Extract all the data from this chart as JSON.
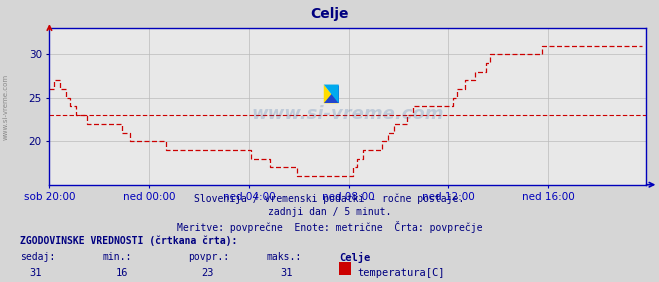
{
  "title": "Celje",
  "title_color": "#000080",
  "bg_color": "#d6d6d6",
  "plot_bg_color": "#e8e8e8",
  "line_color": "#cc0000",
  "avg_line_color": "#cc0000",
  "axis_color": "#0000bb",
  "grid_color": "#bbbbbb",
  "text_color": "#000080",
  "watermark": "www.si-vreme.com",
  "footer_line1": "Slovenija / vremenski podatki - ročne postaje.",
  "footer_line2": "zadnji dan / 5 minut.",
  "footer_line3": "Meritve: povprečne  Enote: metrične  Črta: povprečje",
  "hist_label": "ZGODOVINSKE VREDNOSTI (črtkana črta):",
  "col_sedaj": "sedaj:",
  "col_min": "min.:",
  "col_povpr": "povpr.:",
  "col_maks": "maks.:",
  "val_sedaj": 31,
  "val_min": 16,
  "val_povpr": 23,
  "val_maks": 31,
  "legend_station": "Celje",
  "legend_var": "temperatura[C]",
  "ylim": [
    15,
    33
  ],
  "yticks": [
    20,
    25,
    30
  ],
  "xlim": [
    0,
    287
  ],
  "xtick_positions": [
    0,
    48,
    96,
    144,
    192,
    240
  ],
  "xtick_labels": [
    "sob 20:00",
    "ned 00:00",
    "ned 04:00",
    "ned 08:00",
    "ned 12:00",
    "ned 16:00"
  ],
  "avg_value": 23,
  "temperature_data": [
    26,
    26,
    27,
    27,
    27,
    26,
    26,
    26,
    25,
    25,
    24,
    24,
    24,
    23,
    23,
    23,
    23,
    23,
    22,
    22,
    22,
    22,
    22,
    22,
    22,
    22,
    22,
    22,
    22,
    22,
    22,
    22,
    22,
    22,
    22,
    21,
    21,
    21,
    21,
    20,
    20,
    20,
    20,
    20,
    20,
    20,
    20,
    20,
    20,
    20,
    20,
    20,
    20,
    20,
    20,
    20,
    19,
    19,
    19,
    19,
    19,
    19,
    19,
    19,
    19,
    19,
    19,
    19,
    19,
    19,
    19,
    19,
    19,
    19,
    19,
    19,
    19,
    19,
    19,
    19,
    19,
    19,
    19,
    19,
    19,
    19,
    19,
    19,
    19,
    19,
    19,
    19,
    19,
    19,
    19,
    19,
    19,
    18,
    18,
    18,
    18,
    18,
    18,
    18,
    18,
    18,
    17,
    17,
    17,
    17,
    17,
    17,
    17,
    17,
    17,
    17,
    17,
    17,
    17,
    16,
    16,
    16,
    16,
    16,
    16,
    16,
    16,
    16,
    16,
    16,
    16,
    16,
    16,
    16,
    16,
    16,
    16,
    16,
    16,
    16,
    16,
    16,
    16,
    16,
    16,
    16,
    17,
    17,
    18,
    18,
    18,
    19,
    19,
    19,
    19,
    19,
    19,
    19,
    19,
    19,
    20,
    20,
    20,
    21,
    21,
    21,
    22,
    22,
    22,
    22,
    22,
    22,
    23,
    23,
    23,
    24,
    24,
    24,
    24,
    24,
    24,
    24,
    24,
    24,
    24,
    24,
    24,
    24,
    24,
    24,
    24,
    24,
    24,
    24,
    25,
    25,
    26,
    26,
    26,
    26,
    27,
    27,
    27,
    27,
    27,
    28,
    28,
    28,
    28,
    28,
    29,
    29,
    30,
    30,
    30,
    30,
    30,
    30,
    30,
    30,
    30,
    30,
    30,
    30,
    30,
    30,
    30,
    30,
    30,
    30,
    30,
    30,
    30,
    30,
    30,
    30,
    30,
    31,
    31,
    31,
    31,
    31,
    31,
    31,
    31,
    31,
    31,
    31,
    31,
    31,
    31,
    31,
    31,
    31,
    31,
    31,
    31,
    31,
    31,
    31,
    31,
    31,
    31,
    31,
    31,
    31,
    31,
    31,
    31,
    31,
    31,
    31,
    31,
    31,
    31,
    31,
    31,
    31,
    31,
    31,
    31,
    31,
    31,
    31,
    31,
    31
  ]
}
